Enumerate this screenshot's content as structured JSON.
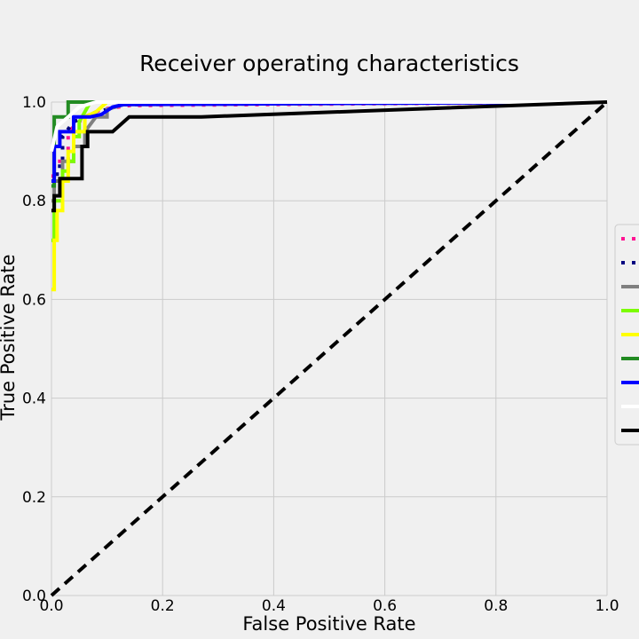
{
  "chart_data": {
    "type": "line",
    "title": "Receiver operating characteristics",
    "xlabel": "False Positive Rate",
    "ylabel": "True Positive Rate",
    "xlim": [
      0.0,
      1.0
    ],
    "ylim": [
      0.0,
      1.0
    ],
    "xticks": [
      "0.0",
      "0.2",
      "0.4",
      "0.6",
      "0.8",
      "1.0"
    ],
    "yticks": [
      "0.0",
      "0.2",
      "0.4",
      "0.6",
      "0.8",
      "1.0"
    ],
    "grid": true,
    "legend_position": "center-right",
    "series": [
      {
        "color": "#ff1493",
        "dash": "dotted",
        "x": [
          0.0,
          0.005,
          0.005,
          0.03,
          0.03,
          0.06,
          0.09,
          0.12,
          0.14,
          1.0
        ],
        "y": [
          0.85,
          0.85,
          0.88,
          0.88,
          0.94,
          0.97,
          0.985,
          0.99,
          0.993,
          1.0
        ]
      },
      {
        "color": "#000080",
        "dash": "dotted",
        "x": [
          0.0,
          0.01,
          0.01,
          0.02,
          0.02,
          0.04,
          0.06,
          0.08,
          0.1,
          0.13,
          1.0
        ],
        "y": [
          0.84,
          0.84,
          0.87,
          0.87,
          0.93,
          0.96,
          0.97,
          0.98,
          0.985,
          0.995,
          1.0
        ]
      },
      {
        "color": "#808080",
        "dash": "solid",
        "x": [
          0.0,
          0.005,
          0.005,
          0.02,
          0.02,
          0.04,
          0.04,
          0.06,
          0.06,
          0.08,
          0.1,
          0.1,
          0.13,
          1.0
        ],
        "y": [
          0.8,
          0.8,
          0.84,
          0.84,
          0.88,
          0.88,
          0.91,
          0.91,
          0.94,
          0.97,
          0.97,
          0.985,
          0.995,
          1.0
        ]
      },
      {
        "color": "#7cfc00",
        "dash": "solid",
        "x": [
          0.0,
          0.005,
          0.005,
          0.02,
          0.02,
          0.03,
          0.03,
          0.04,
          0.04,
          0.05,
          0.05,
          0.06,
          0.07,
          1.0
        ],
        "y": [
          0.72,
          0.72,
          0.8,
          0.8,
          0.86,
          0.86,
          0.88,
          0.88,
          0.93,
          0.93,
          0.96,
          0.98,
          1.0,
          1.0
        ]
      },
      {
        "color": "#ffff00",
        "dash": "solid",
        "x": [
          0.0,
          0.005,
          0.005,
          0.01,
          0.01,
          0.02,
          0.02,
          0.03,
          0.03,
          0.04,
          0.04,
          0.06,
          0.06,
          0.08,
          0.1,
          1.0
        ],
        "y": [
          0.62,
          0.62,
          0.72,
          0.72,
          0.78,
          0.78,
          0.84,
          0.84,
          0.9,
          0.9,
          0.94,
          0.94,
          0.97,
          0.98,
          1.0,
          1.0
        ]
      },
      {
        "color": "#228b22",
        "dash": "solid",
        "x": [
          0.0,
          0.005,
          0.005,
          0.015,
          0.015,
          0.03,
          0.03,
          0.06,
          1.0
        ],
        "y": [
          0.83,
          0.83,
          0.97,
          0.97,
          0.97,
          0.97,
          1.0,
          1.0,
          1.0
        ]
      },
      {
        "color": "#0000ff",
        "dash": "solid",
        "x": [
          0.0,
          0.005,
          0.005,
          0.015,
          0.015,
          0.025,
          0.025,
          0.04,
          0.04,
          0.06,
          0.07,
          0.09,
          0.11,
          0.13,
          1.0
        ],
        "y": [
          0.84,
          0.84,
          0.91,
          0.91,
          0.94,
          0.94,
          0.94,
          0.94,
          0.97,
          0.97,
          0.97,
          0.975,
          0.99,
          0.995,
          1.0
        ]
      },
      {
        "color": "#ffffff",
        "dash": "solid",
        "x": [
          0.0,
          0.01,
          0.03,
          0.05,
          0.08,
          0.1,
          1.0
        ],
        "y": [
          0.9,
          0.95,
          0.97,
          0.99,
          1.0,
          1.0,
          1.0
        ]
      },
      {
        "color": "#000000",
        "dash": "solid",
        "x": [
          0.0,
          0.005,
          0.005,
          0.015,
          0.015,
          0.055,
          0.055,
          0.065,
          0.065,
          0.11,
          0.14,
          0.27,
          1.0
        ],
        "y": [
          0.78,
          0.78,
          0.81,
          0.81,
          0.845,
          0.845,
          0.91,
          0.91,
          0.94,
          0.94,
          0.97,
          0.97,
          1.0
        ]
      }
    ],
    "reference_line": {
      "color": "#000000",
      "dash": "dashed",
      "x": [
        0.0,
        1.0
      ],
      "y": [
        0.0,
        1.0
      ]
    }
  }
}
